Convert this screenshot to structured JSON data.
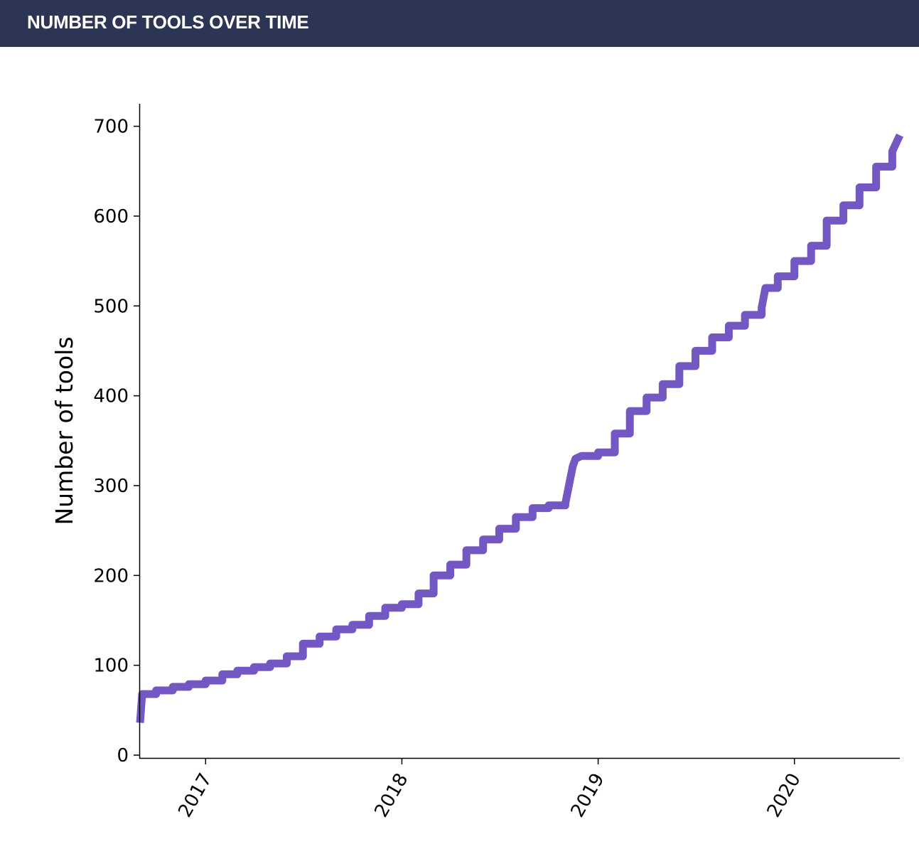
{
  "header": {
    "title": "NUMBER OF TOOLS OVER TIME"
  },
  "colors": {
    "header_bg": "#2d3555",
    "line": "#7357c2",
    "text": "#000000"
  },
  "chart_data": {
    "type": "line",
    "title": "",
    "xlabel": "",
    "ylabel": "Number of tools",
    "xlim": [
      "2016-09-01",
      "2020-07-15"
    ],
    "ylim": [
      0,
      725
    ],
    "x_ticks": [
      "2017",
      "2018",
      "2019",
      "2020"
    ],
    "y_ticks": [
      0,
      100,
      200,
      300,
      400,
      500,
      600,
      700
    ],
    "grid": false,
    "legend": "none",
    "series": [
      {
        "x": [
          "2016-09-01",
          "2016-09-05",
          "2016-10-01",
          "2016-11-01",
          "2016-12-01",
          "2017-01-01",
          "2017-02-01",
          "2017-03-01",
          "2017-04-01",
          "2017-05-01",
          "2017-06-01",
          "2017-07-01",
          "2017-08-01",
          "2017-09-01",
          "2017-10-01",
          "2017-11-01",
          "2017-12-01",
          "2018-01-01",
          "2018-02-01",
          "2018-03-01",
          "2018-04-01",
          "2018-05-01",
          "2018-06-01",
          "2018-07-01",
          "2018-08-01",
          "2018-09-01",
          "2018-10-01",
          "2018-11-01",
          "2018-11-15",
          "2018-11-20",
          "2018-12-01",
          "2019-01-01",
          "2019-02-01",
          "2019-03-01",
          "2019-04-01",
          "2019-05-01",
          "2019-06-01",
          "2019-07-01",
          "2019-08-01",
          "2019-09-01",
          "2019-10-01",
          "2019-11-01",
          "2019-11-08",
          "2019-12-01",
          "2020-01-01",
          "2020-02-01",
          "2020-03-01",
          "2020-04-01",
          "2020-05-01",
          "2020-06-01",
          "2020-07-01",
          "2020-07-15"
        ],
        "y": [
          36,
          68,
          72,
          76,
          79,
          83,
          90,
          94,
          98,
          102,
          110,
          124,
          132,
          140,
          145,
          155,
          164,
          168,
          180,
          200,
          212,
          228,
          240,
          252,
          265,
          275,
          278,
          280,
          322,
          330,
          333,
          337,
          358,
          383,
          398,
          413,
          433,
          450,
          465,
          478,
          490,
          498,
          520,
          533,
          550,
          567,
          595,
          612,
          632,
          655,
          672,
          690
        ]
      }
    ]
  }
}
